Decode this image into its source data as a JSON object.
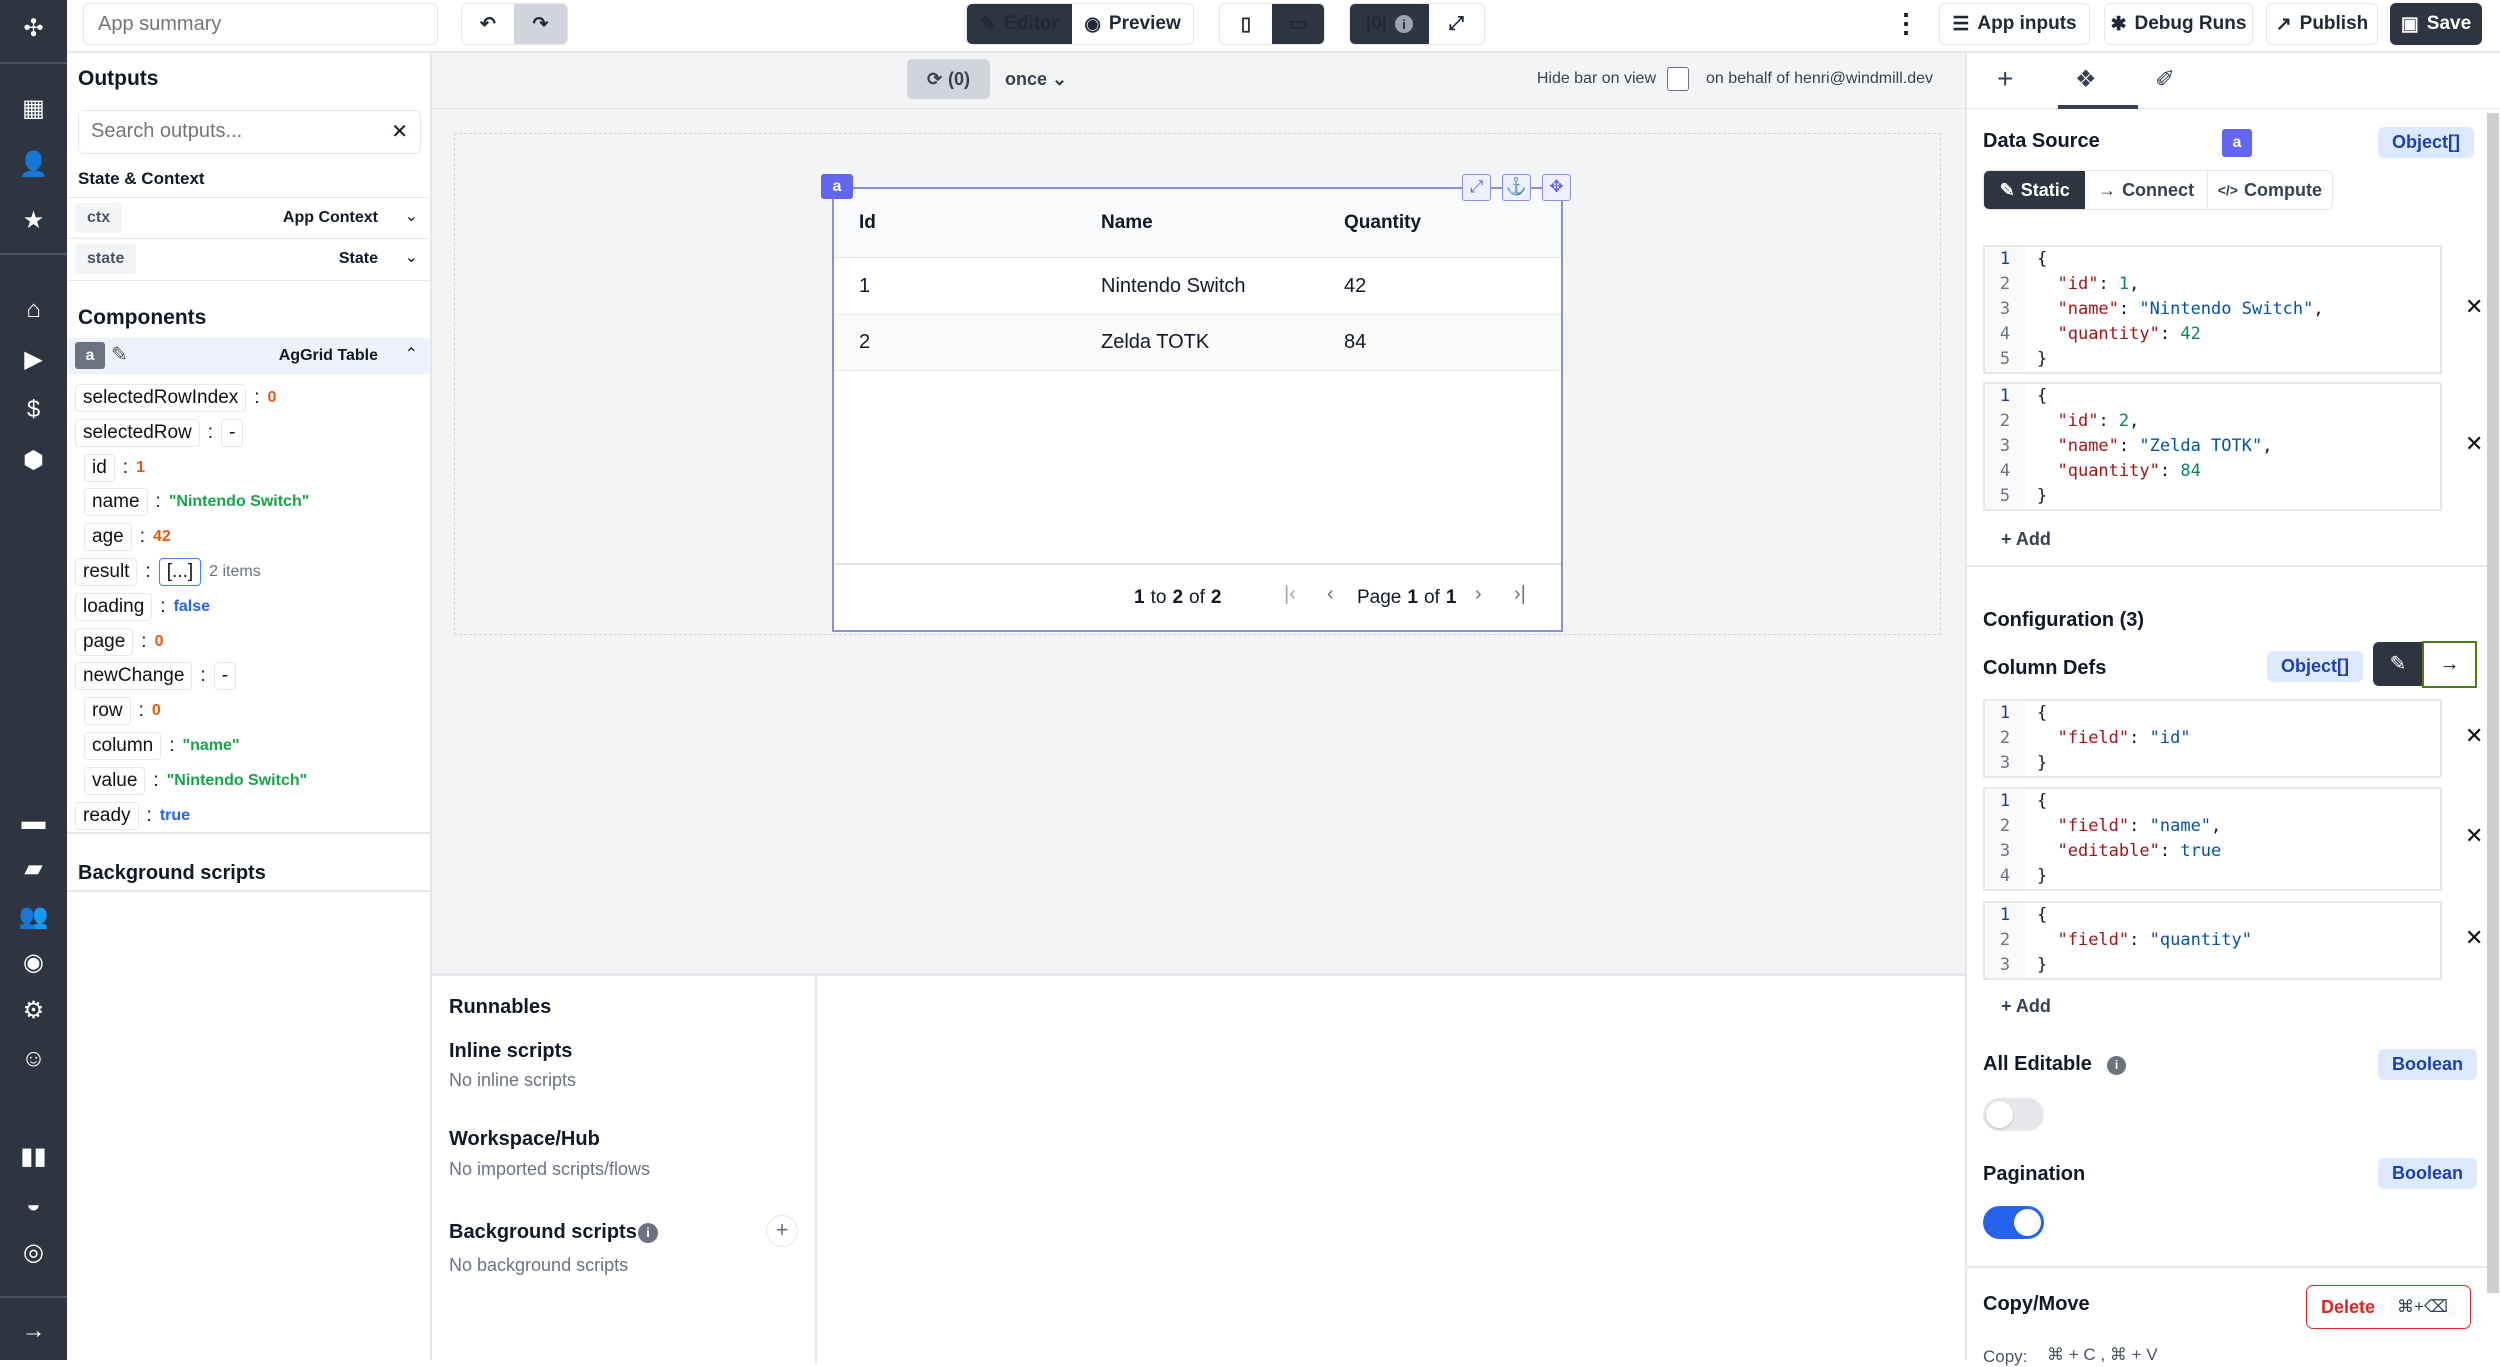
{
  "nav": {
    "icons": [
      "windmill-logo-icon",
      "building-icon",
      "user-icon",
      "star-icon",
      "home-icon",
      "play-icon",
      "dollar-icon",
      "cubes-icon",
      "calendar-icon",
      "folder-open-icon",
      "users-gear-icon",
      "eye-icon",
      "gear-icon",
      "robot-icon",
      "book-icon",
      "discord-icon",
      "github-icon",
      "arrow-right-icon"
    ],
    "glyphs": [
      "✣",
      "▦",
      "👤",
      "★",
      "⌂",
      "▶",
      "$",
      "⬢",
      "▬",
      "▰",
      "👥",
      "◉",
      "⚙",
      "☺",
      "▮▮",
      "◒",
      "◎",
      "→"
    ]
  },
  "topbar": {
    "app_name_placeholder": "App summary",
    "undo": "↶",
    "redo": "↷",
    "editor": "Editor",
    "preview": "Preview",
    "debug_indicator": "|0|",
    "app_inputs": "App inputs",
    "debug_runs": "Debug Runs",
    "publish": "Publish",
    "save": "Save"
  },
  "canvas_bar": {
    "refresh_count": "(0)",
    "run_mode": "once",
    "hide_bar_label": "Hide bar on view",
    "on_behalf": "on behalf of henri@windmill.dev"
  },
  "outputs": {
    "title": "Outputs",
    "search_placeholder": "Search outputs...",
    "state_context_title": "State & Context",
    "ctx_chip": "ctx",
    "ctx_label": "App Context",
    "state_chip": "state",
    "state_label": "State",
    "components_title": "Components",
    "component_id": "a",
    "component_name": "AgGrid Table",
    "tree": [
      {
        "key": "selectedRowIndex",
        "value": "0",
        "type": "num",
        "indent": 0
      },
      {
        "key": "selectedRow",
        "value": "-",
        "type": "dash",
        "indent": 0
      },
      {
        "key": "id",
        "value": "1",
        "type": "num",
        "indent": 1
      },
      {
        "key": "name",
        "value": "\"Nintendo Switch\"",
        "type": "str",
        "indent": 1
      },
      {
        "key": "age",
        "value": "42",
        "type": "num",
        "indent": 1
      },
      {
        "key": "result",
        "value": "[...]",
        "type": "arr",
        "extra": "2 items",
        "indent": 0
      },
      {
        "key": "loading",
        "value": "false",
        "type": "bool",
        "indent": 0
      },
      {
        "key": "page",
        "value": "0",
        "type": "num",
        "indent": 0
      },
      {
        "key": "newChange",
        "value": "-",
        "type": "dash",
        "indent": 0
      },
      {
        "key": "row",
        "value": "0",
        "type": "num",
        "indent": 1
      },
      {
        "key": "column",
        "value": "\"name\"",
        "type": "str",
        "indent": 1
      },
      {
        "key": "value",
        "value": "\"Nintendo Switch\"",
        "type": "str",
        "indent": 1
      },
      {
        "key": "ready",
        "value": "true",
        "type": "bool",
        "indent": 0
      }
    ],
    "background_scripts_title": "Background scripts"
  },
  "grid": {
    "component_id": "a",
    "columns": [
      "Id",
      "Name",
      "Quantity"
    ],
    "rows": [
      [
        "1",
        "Nintendo Switch",
        "42"
      ],
      [
        "2",
        "Zelda TOTK",
        "84"
      ]
    ],
    "footer_from": "1",
    "footer_to_word": "to",
    "footer_to": "2",
    "footer_of_word": "of",
    "footer_total": "2",
    "page_word": "Page",
    "page_current": "1",
    "page_of_word": "of",
    "page_total": "1"
  },
  "runnables": {
    "title": "Runnables",
    "inline_title": "Inline scripts",
    "inline_empty": "No inline scripts",
    "hub_title": "Workspace/Hub",
    "hub_empty": "No imported scripts/flows",
    "bg_title": "Background scripts",
    "bg_empty": "No background scripts"
  },
  "panel": {
    "data_source_title": "Data Source",
    "component_id": "a",
    "data_source_type": "Object[]",
    "modes": [
      "Static",
      "Connect",
      "Compute"
    ],
    "mode_icons": [
      "✎",
      "→",
      "</>"
    ],
    "data_items": [
      [
        "{",
        "  \"id\": 1,",
        "  \"name\": \"Nintendo Switch\",",
        "  \"quantity\": 42",
        "}"
      ],
      [
        "{",
        "  \"id\": 2,",
        "  \"name\": \"Zelda TOTK\",",
        "  \"quantity\": 84",
        "}"
      ]
    ],
    "add_label": "+ Add",
    "configuration_title": "Configuration (3)",
    "column_defs_title": "Column Defs",
    "column_defs_type": "Object[]",
    "column_defs": [
      [
        "{",
        "  \"field\": \"id\"",
        "}"
      ],
      [
        "{",
        "  \"field\": \"name\",",
        "  \"editable\": true",
        "}"
      ],
      [
        "{",
        "  \"field\": \"quantity\"",
        "}"
      ]
    ],
    "all_editable_title": "All Editable",
    "all_editable_type": "Boolean",
    "all_editable_value": false,
    "pagination_title": "Pagination",
    "pagination_type": "Boolean",
    "pagination_value": true,
    "copy_move_title": "Copy/Move",
    "delete_label": "Delete",
    "delete_shortcut": "⌘+⌫",
    "copy_label": "Copy:",
    "copy_shortcut": "⌘ + C , ⌘ + V"
  },
  "colors": {
    "accent": "#6366f1",
    "dark": "#2e3440",
    "toggle_on": "#2563eb",
    "delete": "#dc2626"
  }
}
